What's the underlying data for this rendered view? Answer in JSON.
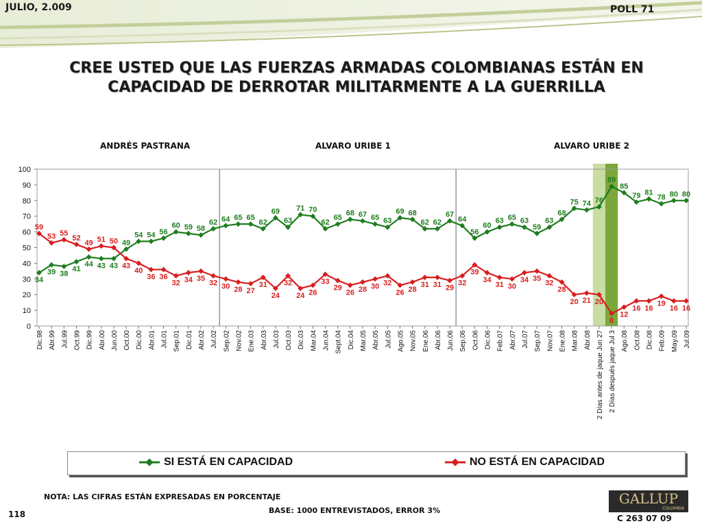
{
  "header": {
    "date": "JULIO, 2.009",
    "poll": "POLL 71"
  },
  "title_lines": [
    "CREE USTED QUE LAS FUERZAS ARMADAS COLOMBIANAS ESTÁN EN",
    "CAPACIDAD DE DERROTAR MILITARMENTE A LA GUERRILLA"
  ],
  "periods": [
    "ANDRÉS  PASTRANA",
    "ALVARO URIBE 1",
    "ALVARO URIBE 2"
  ],
  "footer": {
    "note": "NOTA: LAS CIFRAS ESTÁN EXPRESADAS EN PORCENTAJE",
    "base": "BASE: 1000 ENTREVISTADOS, ERROR 3%",
    "page": "118",
    "code": "C 263 07 09",
    "logo": "GALLUP",
    "logo_sub": "COLOMBIA"
  },
  "colors": {
    "si": "#1e7d1e",
    "no": "#d81e1e",
    "band_light": "#c9dca3",
    "band_dark": "#7aa83a",
    "divider": "#7a7a9a"
  },
  "chart_data": {
    "type": "line",
    "categories": [
      "Dic.98",
      "Abr.99",
      "Jul.99",
      "Oct.99",
      "Dic.99",
      "Abr.00",
      "Jun.00",
      "Oct.00",
      "Dic.00",
      "Abr.01",
      "Jul.01",
      "Sep.01",
      "Dic.01",
      "Abr.02",
      "Jul.02",
      "Sep.02",
      "Nov.02",
      "Ene.03",
      "Abr.03",
      "Jul.03",
      "Oct.03",
      "Dic.03",
      "Mar.04",
      "Jun.04",
      "Sept.04",
      "Dic.04",
      "Mar.05",
      "Abr.05",
      "Jul.05",
      "Ago.05",
      "Nov.05",
      "Ene.06",
      "Abr.06",
      "Jun.06",
      "Sep.06",
      "Oct.06",
      "Dic.06",
      "Feb.07",
      "Abr.07",
      "Jul.07",
      "Sep.07",
      "Nov.07",
      "Ene.08",
      "Mar.08",
      "Abr.08",
      "2 Días antes de jaque Jun 27",
      "2 Días después jaque Jul 3",
      "Ago.08",
      "Oct.08",
      "Dic.08",
      "Feb.09",
      "May.09",
      "Jul.09"
    ],
    "series": [
      {
        "name": "SI ESTÁ EN CAPACIDAD",
        "values": [
          34,
          39,
          38,
          41,
          44,
          43,
          43,
          49,
          54,
          54,
          56,
          60,
          59,
          58,
          62,
          64,
          65,
          65,
          62,
          69,
          63,
          71,
          70,
          62,
          65,
          68,
          67,
          65,
          63,
          69,
          68,
          62,
          62,
          67,
          64,
          56,
          60,
          63,
          65,
          63,
          59,
          63,
          68,
          75,
          74,
          76,
          89,
          85,
          79,
          81,
          78,
          80,
          80
        ]
      },
      {
        "name": "NO ESTÁ EN CAPACIDAD",
        "values": [
          59,
          53,
          55,
          52,
          49,
          51,
          50,
          43,
          40,
          36,
          36,
          32,
          34,
          35,
          32,
          30,
          28,
          27,
          31,
          24,
          32,
          24,
          26,
          33,
          29,
          26,
          28,
          30,
          32,
          26,
          28,
          31,
          31,
          29,
          32,
          39,
          34,
          31,
          30,
          34,
          35,
          32,
          28,
          20,
          21,
          20,
          8,
          12,
          16,
          16,
          19,
          16,
          16
        ]
      }
    ],
    "ylim": [
      0,
      100
    ],
    "yticks": [
      0,
      10,
      20,
      30,
      40,
      50,
      60,
      70,
      80,
      90,
      100
    ],
    "dividers_after_index": [
      14,
      33
    ],
    "highlight_bands": [
      45,
      46
    ],
    "legend": "bottom",
    "grid": false
  }
}
